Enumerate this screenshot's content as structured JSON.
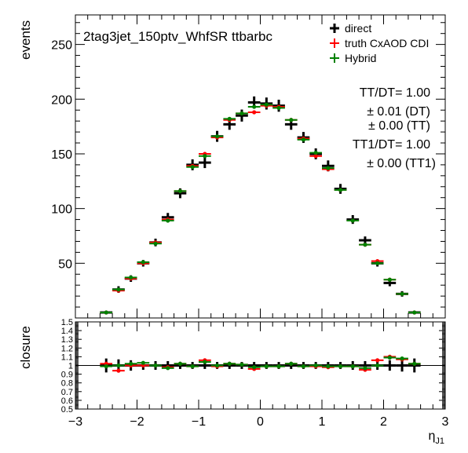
{
  "chart_data": [
    {
      "type": "scatter",
      "panel": "main",
      "title": "2tag3jet_150ptv_WhfSR  ttbarbc",
      "xlabel": "η_J1",
      "ylabel": "events",
      "xlim": [
        -3,
        3
      ],
      "ylim": [
        0,
        277
      ],
      "x_ticks": [
        -3,
        -2,
        -1,
        0,
        1,
        2,
        3
      ],
      "y_ticks": [
        50,
        100,
        150,
        200,
        250
      ],
      "legend_position": "top-right",
      "x": [
        -2.5,
        -2.3,
        -2.1,
        -1.9,
        -1.7,
        -1.5,
        -1.3,
        -1.1,
        -0.9,
        -0.7,
        -0.5,
        -0.3,
        -0.1,
        0.1,
        0.3,
        0.5,
        0.7,
        0.9,
        1.1,
        1.3,
        1.5,
        1.7,
        1.9,
        2.1,
        2.3,
        2.5
      ],
      "series": [
        {
          "name": "direct",
          "color": "#000000",
          "values": [
            5,
            26,
            36,
            50,
            69,
            92,
            114,
            140,
            142,
            166,
            177,
            185,
            197,
            196,
            194,
            177,
            165,
            150,
            139,
            118,
            90,
            71,
            50,
            32,
            22,
            5
          ],
          "errors": [
            1.5,
            3,
            3,
            3,
            3.5,
            4,
            4.5,
            5,
            5,
            5,
            5,
            5.5,
            5.5,
            5.5,
            5.5,
            5,
            5,
            5,
            5,
            4.5,
            4,
            3.5,
            3,
            3,
            2.5,
            1.5
          ]
        },
        {
          "name": "truth CxAOD CDI",
          "color": "#ff0000",
          "values": [
            5,
            25,
            36,
            50,
            69,
            90,
            116,
            139,
            150,
            165,
            181,
            187,
            188,
            194,
            193,
            181,
            164,
            148,
            136,
            117,
            89,
            67,
            52,
            35,
            22,
            5
          ],
          "errors": [
            1,
            1,
            1,
            1,
            1,
            1,
            1,
            1,
            1,
            1,
            1,
            1,
            1,
            1,
            1,
            1,
            1,
            1,
            1,
            1,
            1,
            1,
            1,
            1,
            1,
            1
          ]
        },
        {
          "name": "Hybrid",
          "color": "#008000",
          "values": [
            5,
            26,
            37,
            51,
            68,
            89,
            116,
            138,
            148,
            166,
            182,
            187,
            193,
            195,
            192,
            181,
            163,
            151,
            137,
            117,
            89,
            67,
            50,
            35,
            22,
            5
          ],
          "errors": [
            1,
            1,
            1,
            1,
            1,
            1,
            1,
            1,
            1,
            1,
            1,
            1,
            1,
            1,
            1,
            1,
            1,
            1,
            1,
            1,
            1,
            1,
            1,
            1,
            1,
            1
          ]
        }
      ],
      "annotations": [
        "TT/DT= 1.00",
        "± 0.01 (DT)",
        "± 0.00 (TT)",
        "TT1/DT= 1.00",
        "± 0.00 (TT1)"
      ]
    },
    {
      "type": "scatter",
      "panel": "ratio",
      "ylabel": "closure",
      "xlim": [
        -3,
        3
      ],
      "ylim": [
        0.5,
        1.5
      ],
      "y_ticks": [
        0.5,
        0.6,
        0.7,
        0.8,
        0.9,
        1,
        1.1,
        1.2,
        1.3,
        1.4,
        1.5
      ],
      "y_tick_labels": [
        "0.5",
        "0.6",
        "0.7",
        "0.8",
        "0.9",
        "1",
        "1.1",
        "1.2",
        "1.3",
        "1.4",
        "1.5"
      ],
      "x": [
        -2.5,
        -2.3,
        -2.1,
        -1.9,
        -1.7,
        -1.5,
        -1.3,
        -1.1,
        -0.9,
        -0.7,
        -0.5,
        -0.3,
        -0.1,
        0.1,
        0.3,
        0.5,
        0.7,
        0.9,
        1.1,
        1.3,
        1.5,
        1.7,
        1.9,
        2.1,
        2.3,
        2.5
      ],
      "series": [
        {
          "name": "direct",
          "color": "#000000",
          "values": [
            1,
            1,
            1,
            1,
            1,
            1,
            1,
            1,
            1,
            1,
            1,
            1,
            1,
            1,
            1,
            1,
            1,
            1,
            1,
            1,
            1,
            1,
            1,
            1,
            1,
            1
          ],
          "errors": [
            0.08,
            0.07,
            0.06,
            0.05,
            0.05,
            0.05,
            0.04,
            0.04,
            0.04,
            0.04,
            0.04,
            0.04,
            0.04,
            0.04,
            0.04,
            0.04,
            0.04,
            0.04,
            0.04,
            0.04,
            0.05,
            0.05,
            0.05,
            0.06,
            0.07,
            0.08
          ]
        },
        {
          "name": "truth CxAOD CDI",
          "color": "#ff0000",
          "values": [
            1.02,
            0.94,
            1.0,
            1.0,
            1.0,
            0.98,
            1.02,
            0.99,
            1.06,
            0.99,
            1.02,
            1.01,
            0.96,
            0.99,
            0.99,
            1.02,
            0.99,
            0.99,
            0.98,
            0.99,
            0.99,
            0.95,
            1.06,
            1.1,
            1.07,
            1.02
          ],
          "errors": [
            0.01,
            0.01,
            0.01,
            0.01,
            0.01,
            0.01,
            0.01,
            0.01,
            0.01,
            0.01,
            0.01,
            0.01,
            0.01,
            0.01,
            0.01,
            0.01,
            0.01,
            0.01,
            0.01,
            0.01,
            0.01,
            0.01,
            0.01,
            0.01,
            0.01,
            0.01
          ]
        },
        {
          "name": "Hybrid",
          "color": "#008000",
          "values": [
            0.99,
            1.0,
            1.02,
            1.03,
            1.0,
            0.97,
            1.02,
            0.99,
            1.04,
            1.0,
            1.02,
            1.01,
            0.98,
            0.99,
            0.99,
            1.02,
            0.99,
            1.0,
            0.99,
            0.99,
            0.99,
            0.97,
            1.0,
            1.09,
            1.08,
            1.02
          ],
          "errors": [
            0.01,
            0.01,
            0.01,
            0.01,
            0.01,
            0.01,
            0.01,
            0.01,
            0.01,
            0.01,
            0.01,
            0.01,
            0.01,
            0.01,
            0.01,
            0.01,
            0.01,
            0.01,
            0.01,
            0.01,
            0.01,
            0.01,
            0.01,
            0.01,
            0.01,
            0.01
          ]
        }
      ]
    }
  ]
}
